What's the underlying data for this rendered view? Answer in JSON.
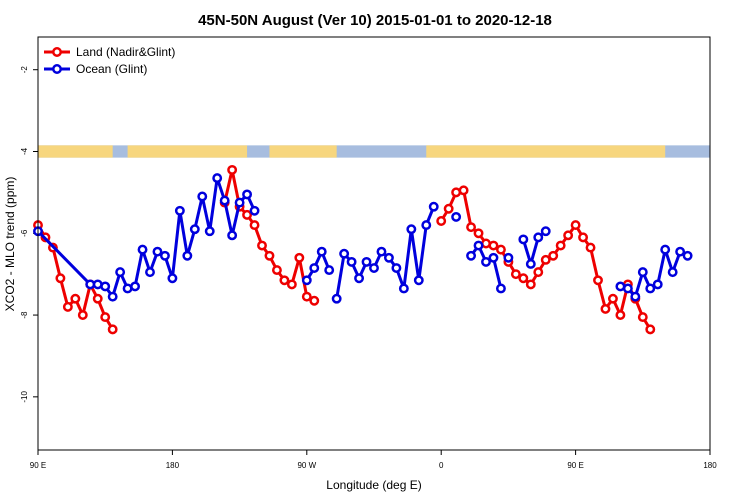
{
  "chart_data": {
    "type": "line",
    "title": "45N-50N August (Ver 10)   2015-01-01 to 2020-12-18",
    "xlabel": "Longitude (deg E)",
    "ylabel": "XCO2 - MLO trend (ppm)",
    "xlim": [
      90,
      540
    ],
    "ylim": [
      -11.3,
      -1.2
    ],
    "x_ticks": [
      {
        "value": 90,
        "label": "90 E"
      },
      {
        "value": 180,
        "label": "180"
      },
      {
        "value": 270,
        "label": "90 W"
      },
      {
        "value": 360,
        "label": "0"
      },
      {
        "value": 450,
        "label": "90 E"
      },
      {
        "value": 540,
        "label": "180"
      }
    ],
    "y_ticks": [
      {
        "value": -2,
        "label": "-2"
      },
      {
        "value": -4,
        "label": "-4"
      },
      {
        "value": -6,
        "label": "-6"
      },
      {
        "value": -8,
        "label": "-8"
      },
      {
        "value": -10,
        "label": "-10"
      }
    ],
    "grid": false,
    "legend_position": "top-left",
    "land_ocean_band": {
      "y_range": [
        -4.15,
        -3.85
      ],
      "land_color": "#f7d67e",
      "ocean_color": "#a7bddf",
      "land_segments": [
        [
          90,
          140
        ],
        [
          150,
          230
        ],
        [
          245,
          290
        ],
        [
          350,
          510
        ]
      ]
    },
    "series": [
      {
        "name": "Land (Nadir&Glint)",
        "color": "#ee0000",
        "segments": [
          [
            [
              90,
              -5.8
            ],
            [
              95,
              -6.1
            ],
            [
              100,
              -6.35
            ],
            [
              105,
              -7.1
            ],
            [
              110,
              -7.8
            ],
            [
              115,
              -7.6
            ],
            [
              120,
              -8.0
            ],
            [
              125,
              -7.25
            ],
            [
              130,
              -7.6
            ],
            [
              135,
              -8.05
            ],
            [
              140,
              -8.35
            ]
          ],
          [
            [
              215,
              -5.25
            ],
            [
              220,
              -4.45
            ],
            [
              225,
              -5.35
            ],
            [
              230,
              -5.55
            ],
            [
              235,
              -5.8
            ],
            [
              240,
              -6.3
            ],
            [
              245,
              -6.55
            ],
            [
              250,
              -6.9
            ],
            [
              255,
              -7.15
            ],
            [
              260,
              -7.25
            ],
            [
              265,
              -6.6
            ],
            [
              270,
              -7.55
            ],
            [
              275,
              -7.65
            ]
          ],
          [
            [
              360,
              -5.7
            ],
            [
              365,
              -5.4
            ],
            [
              370,
              -5.0
            ],
            [
              375,
              -4.95
            ],
            [
              380,
              -5.85
            ],
            [
              385,
              -6.0
            ],
            [
              390,
              -6.25
            ],
            [
              395,
              -6.3
            ],
            [
              400,
              -6.4
            ],
            [
              405,
              -6.7
            ],
            [
              410,
              -7.0
            ],
            [
              415,
              -7.1
            ],
            [
              420,
              -7.25
            ],
            [
              425,
              -6.95
            ],
            [
              430,
              -6.65
            ],
            [
              435,
              -6.55
            ],
            [
              440,
              -6.3
            ],
            [
              445,
              -6.05
            ],
            [
              450,
              -5.8
            ],
            [
              455,
              -6.1
            ],
            [
              460,
              -6.35
            ],
            [
              465,
              -7.15
            ],
            [
              470,
              -7.85
            ],
            [
              475,
              -7.6
            ],
            [
              480,
              -8.0
            ],
            [
              485,
              -7.25
            ],
            [
              490,
              -7.6
            ],
            [
              495,
              -8.05
            ],
            [
              500,
              -8.35
            ]
          ]
        ]
      },
      {
        "name": "Ocean (Glint)",
        "color": "#0000dd",
        "segments": [
          [
            [
              90,
              -5.95
            ],
            [
              125,
              -7.25
            ],
            [
              130,
              -7.25
            ],
            [
              135,
              -7.3
            ],
            [
              140,
              -7.55
            ],
            [
              145,
              -6.95
            ],
            [
              150,
              -7.35
            ],
            [
              155,
              -7.3
            ],
            [
              160,
              -6.4
            ],
            [
              165,
              -6.95
            ],
            [
              170,
              -6.45
            ],
            [
              175,
              -6.55
            ],
            [
              180,
              -7.1
            ],
            [
              185,
              -5.45
            ],
            [
              190,
              -6.55
            ],
            [
              195,
              -5.9
            ],
            [
              200,
              -5.1
            ],
            [
              205,
              -5.95
            ],
            [
              210,
              -4.65
            ],
            [
              215,
              -5.2
            ],
            [
              220,
              -6.05
            ],
            [
              225,
              -5.25
            ],
            [
              230,
              -5.05
            ],
            [
              235,
              -5.45
            ]
          ],
          [
            [
              270,
              -7.15
            ],
            [
              275,
              -6.85
            ],
            [
              280,
              -6.45
            ],
            [
              285,
              -6.9
            ]
          ],
          [
            [
              290,
              -7.6
            ],
            [
              295,
              -6.5
            ],
            [
              300,
              -6.7
            ],
            [
              305,
              -7.1
            ],
            [
              310,
              -6.7
            ],
            [
              315,
              -6.85
            ],
            [
              320,
              -6.45
            ],
            [
              325,
              -6.6
            ],
            [
              330,
              -6.85
            ],
            [
              335,
              -7.35
            ],
            [
              340,
              -5.9
            ],
            [
              345,
              -7.15
            ],
            [
              350,
              -5.8
            ],
            [
              355,
              -5.35
            ]
          ],
          [
            [
              370,
              -5.6
            ]
          ],
          [
            [
              380,
              -6.55
            ],
            [
              385,
              -6.3
            ],
            [
              390,
              -6.7
            ],
            [
              395,
              -6.6
            ],
            [
              400,
              -7.35
            ]
          ],
          [
            [
              405,
              -6.6
            ]
          ],
          [
            [
              415,
              -6.15
            ],
            [
              420,
              -6.75
            ],
            [
              425,
              -6.1
            ],
            [
              430,
              -5.95
            ]
          ],
          [
            [
              480,
              -7.3
            ],
            [
              485,
              -7.35
            ],
            [
              490,
              -7.55
            ],
            [
              495,
              -6.95
            ],
            [
              500,
              -7.35
            ],
            [
              505,
              -7.25
            ],
            [
              510,
              -6.4
            ],
            [
              515,
              -6.95
            ],
            [
              520,
              -6.45
            ],
            [
              525,
              -6.55
            ]
          ]
        ]
      }
    ]
  }
}
